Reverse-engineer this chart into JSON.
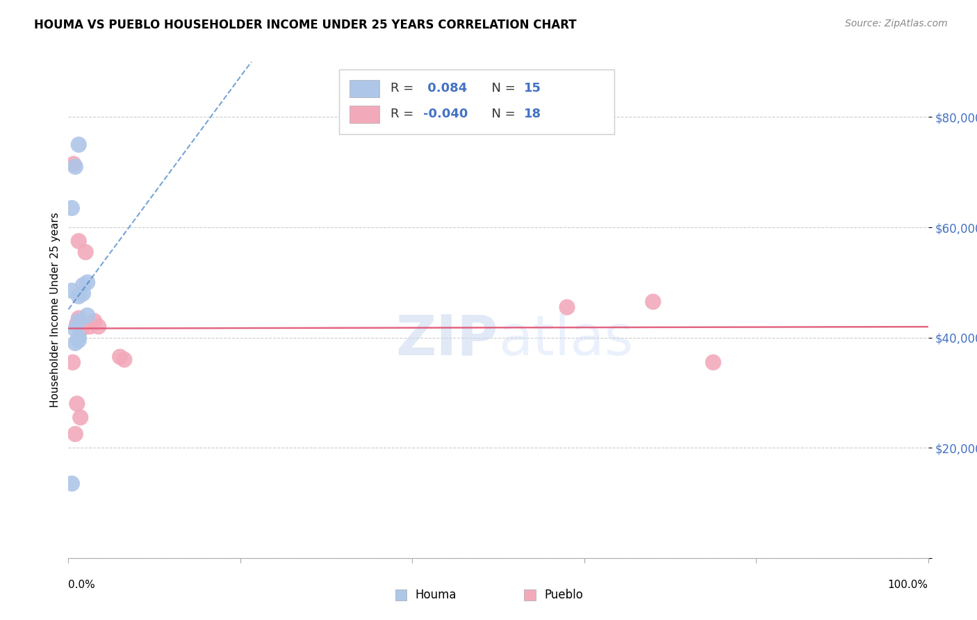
{
  "title": "HOUMA VS PUEBLO HOUSEHOLDER INCOME UNDER 25 YEARS CORRELATION CHART",
  "source": "Source: ZipAtlas.com",
  "ylabel": "Householder Income Under 25 years",
  "ylim": [
    0,
    90000
  ],
  "xlim": [
    0.0,
    1.0
  ],
  "yticks": [
    0,
    20000,
    40000,
    60000,
    80000
  ],
  "ytick_labels": [
    "",
    "$20,000",
    "$40,000",
    "$60,000",
    "$80,000"
  ],
  "houma_R": 0.084,
  "houma_N": 15,
  "pueblo_R": -0.04,
  "pueblo_N": 18,
  "houma_color": "#aec6e8",
  "pueblo_color": "#f2aabb",
  "houma_line_color": "#4a86c8",
  "pueblo_line_color": "#e05575",
  "watermark_zip": "ZIP",
  "watermark_atlas": "atlas",
  "houma_x": [
    0.012,
    0.008,
    0.004,
    0.004,
    0.017,
    0.022,
    0.017,
    0.012,
    0.012,
    0.022,
    0.008,
    0.012,
    0.008,
    0.012,
    0.004
  ],
  "houma_y": [
    75000,
    71000,
    63500,
    48500,
    49500,
    50000,
    48000,
    47500,
    43000,
    44000,
    41500,
    40000,
    39000,
    39500,
    13500
  ],
  "pueblo_x": [
    0.006,
    0.012,
    0.02,
    0.03,
    0.035,
    0.01,
    0.012,
    0.025,
    0.005,
    0.01,
    0.014,
    0.008,
    0.06,
    0.065,
    0.015,
    0.58,
    0.68,
    0.75
  ],
  "pueblo_y": [
    71500,
    57500,
    55500,
    43000,
    42000,
    42500,
    43500,
    42000,
    35500,
    28000,
    25500,
    22500,
    36500,
    36000,
    41500,
    45500,
    46500,
    35500
  ]
}
